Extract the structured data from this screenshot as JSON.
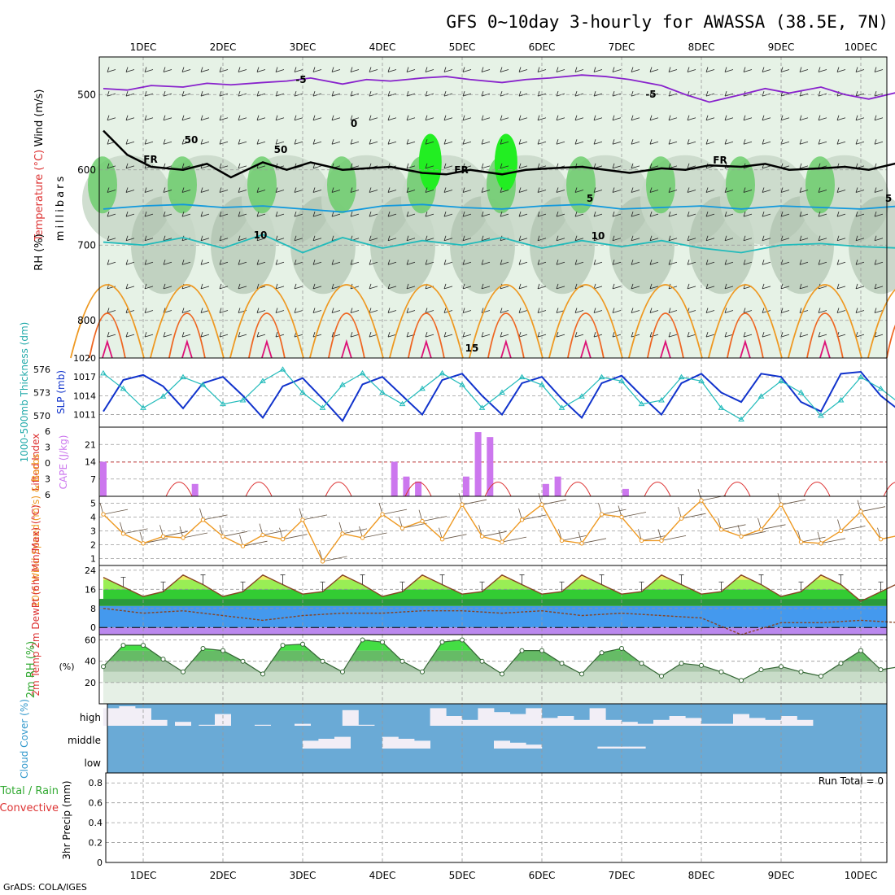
{
  "title": "GFS 0~10day 3-hourly for AWASSA (38.5E, 7N)",
  "footer": "GrADS: COLA/IGES",
  "days": [
    "1DEC",
    "2DEC",
    "3DEC",
    "4DEC",
    "5DEC",
    "6DEC",
    "7DEC",
    "8DEC",
    "9DEC",
    "10DEC"
  ],
  "colors": {
    "rh_light": "#e6f2e6",
    "rh_mid": "#c8d8c8",
    "rh_dark": "#a8bca8",
    "rh_green": "#66cc66",
    "rh_bright": "#22ee22",
    "temp_neg": "#8822cc",
    "temp_5": "#1199dd",
    "temp_10": "#22bbbb",
    "temp_15": "#ee9922",
    "temp_20": "#ee6622",
    "temp_25": "#dd1177",
    "fr": "#000000",
    "slp": "#1133cc",
    "thick": "#22bbbb",
    "cape": "#cc77ee",
    "li": "#dd3333",
    "wind10": "#ee9922",
    "cloud_bg": "#6aaad6",
    "cloud_fill": "#f2eef6",
    "precip": "#33aa33"
  },
  "chart_data": [
    {
      "panel": "upper-air",
      "type": "heatmap",
      "legend_labels": [
        "Wind (m/s)",
        "Temperature (°C)",
        "RH (%)"
      ],
      "ylabel": "millibars",
      "yticks": [
        500,
        600,
        700,
        800
      ],
      "ylim": [
        450,
        850
      ],
      "contour_labels": [
        "-5",
        "-5",
        "0",
        "5",
        "5",
        "10",
        "10",
        "15",
        "FR",
        "FR",
        "FR",
        "50",
        "50"
      ],
      "series": [
        {
          "name": "-5",
          "x": [
            0,
            0.3,
            0.6,
            1,
            1.3,
            1.6,
            2,
            2.3,
            2.6,
            3,
            3.3,
            3.6,
            4,
            4.3,
            4.6,
            5,
            5.3,
            5.6,
            6,
            6.3,
            6.6,
            7,
            7.3,
            7.6,
            8,
            8.3,
            8.6,
            9,
            9.3,
            9.6,
            10
          ],
          "values": [
            492,
            494,
            488,
            490,
            485,
            487,
            484,
            482,
            478,
            486,
            480,
            482,
            478,
            476,
            480,
            484,
            480,
            478,
            474,
            476,
            480,
            488,
            500,
            510,
            500,
            492,
            498,
            490,
            500,
            506,
            496
          ]
        },
        {
          "name": "FR",
          "x": [
            0,
            0.3,
            0.6,
            1,
            1.3,
            1.6,
            2,
            2.3,
            2.6,
            3,
            3.3,
            3.6,
            4,
            4.3,
            4.6,
            5,
            5.3,
            5.6,
            6,
            6.3,
            6.6,
            7,
            7.3,
            7.6,
            8,
            8.3,
            8.6,
            9,
            9.3,
            9.6,
            10
          ],
          "values": [
            548,
            580,
            596,
            600,
            592,
            610,
            590,
            600,
            590,
            600,
            598,
            596,
            604,
            606,
            600,
            606,
            600,
            598,
            596,
            600,
            604,
            598,
            600,
            594,
            596,
            592,
            600,
            598,
            596,
            600,
            590
          ]
        },
        {
          "name": "5",
          "x": [
            0,
            0.5,
            1,
            1.5,
            2,
            2.5,
            3,
            3.5,
            4,
            4.5,
            5,
            5.5,
            6,
            6.5,
            7,
            7.5,
            8,
            8.5,
            9,
            9.5,
            10
          ],
          "values": [
            652,
            648,
            646,
            650,
            648,
            652,
            656,
            648,
            646,
            650,
            652,
            648,
            646,
            652,
            650,
            648,
            652,
            648,
            650,
            652,
            648
          ]
        },
        {
          "name": "10",
          "x": [
            0,
            0.5,
            1,
            1.5,
            2,
            2.5,
            3,
            3.5,
            4,
            4.5,
            5,
            5.5,
            6,
            6.5,
            7,
            7.5,
            8,
            8.5,
            9,
            9.5,
            10
          ],
          "values": [
            696,
            700,
            690,
            704,
            686,
            710,
            690,
            704,
            694,
            700,
            690,
            704,
            694,
            702,
            694,
            704,
            710,
            700,
            698,
            702,
            704
          ]
        }
      ]
    },
    {
      "panel": "slp-thickness",
      "type": "line",
      "ylabel": "SLP (mb)",
      "ylabel2": "1000-500mb Thickness (dm)",
      "yticks": [
        1011,
        1014,
        1017,
        1020
      ],
      "yticks2": [
        570,
        573,
        576
      ],
      "ylim": [
        1009,
        1020
      ],
      "series": [
        {
          "name": "SLP",
          "x": [
            0,
            0.25,
            0.5,
            0.75,
            1,
            1.25,
            1.5,
            1.75,
            2,
            2.25,
            2.5,
            2.75,
            3,
            3.25,
            3.5,
            3.75,
            4,
            4.25,
            4.5,
            4.75,
            5,
            5.25,
            5.5,
            5.75,
            6,
            6.25,
            6.5,
            6.75,
            7,
            7.25,
            7.5,
            7.75,
            8,
            8.25,
            8.5,
            8.75,
            9,
            9.25,
            9.5,
            9.75,
            10
          ],
          "values": [
            1011.5,
            1016.5,
            1017.3,
            1015.5,
            1012,
            1016,
            1017,
            1014,
            1010.5,
            1015.5,
            1016.8,
            1013.5,
            1010,
            1015.8,
            1017,
            1014,
            1011,
            1016.5,
            1017.5,
            1014,
            1011,
            1016,
            1017,
            1013.5,
            1010.5,
            1016,
            1017.2,
            1014,
            1011,
            1016,
            1017.5,
            1014.5,
            1013,
            1017.5,
            1017,
            1013,
            1011.5,
            1017.5,
            1017.8,
            1014,
            1011.5
          ]
        },
        {
          "name": "Thickness",
          "x": [
            0,
            0.25,
            0.5,
            0.75,
            1,
            1.25,
            1.5,
            1.75,
            2,
            2.25,
            2.5,
            2.75,
            3,
            3.25,
            3.5,
            3.75,
            4,
            4.25,
            4.5,
            4.75,
            5,
            5.25,
            5.5,
            5.75,
            6,
            6.25,
            6.5,
            6.75,
            7,
            7.25,
            7.5,
            7.75,
            8,
            8.25,
            8.5,
            8.75,
            9,
            9.25,
            9.5,
            9.75,
            10
          ],
          "values": [
            575.5,
            573.5,
            571,
            572.5,
            575,
            574,
            571.5,
            572,
            574.5,
            576,
            573,
            571,
            574,
            575.5,
            573,
            571.5,
            573.5,
            575.5,
            574,
            571,
            573,
            575,
            574,
            571,
            572.5,
            575,
            574.5,
            571.5,
            572,
            575,
            574.5,
            571,
            569.5,
            572.5,
            574.5,
            573,
            570,
            572,
            575,
            573.5,
            571.5
          ]
        }
      ]
    },
    {
      "panel": "cape-li",
      "type": "bar",
      "ylabel": "CAPE (J/kg)",
      "ylabel2": "Lifted Index",
      "yticks": [
        7,
        14,
        21
      ],
      "yticks2": [
        6,
        3,
        0,
        -3,
        -6
      ],
      "ylim": [
        0,
        28
      ],
      "x": [
        0,
        1.15,
        3.65,
        3.8,
        3.95,
        4.55,
        4.7,
        4.85,
        5.55,
        5.7,
        6.55
      ],
      "values": [
        14,
        5,
        14,
        8,
        6,
        8,
        26,
        24,
        5,
        8,
        3
      ]
    },
    {
      "panel": "wind-10m",
      "type": "line",
      "ylabel": "10m Wind Speed (m/s) & Barbs",
      "yticks": [
        1,
        2,
        3,
        4,
        5
      ],
      "ylim": [
        0.5,
        5.5
      ],
      "series": [
        {
          "name": "Speed",
          "x": [
            0,
            0.25,
            0.5,
            0.75,
            1,
            1.25,
            1.5,
            1.75,
            2,
            2.25,
            2.5,
            2.75,
            3,
            3.25,
            3.5,
            3.75,
            4,
            4.25,
            4.5,
            4.75,
            5,
            5.25,
            5.5,
            5.75,
            6,
            6.25,
            6.5,
            6.75,
            7,
            7.25,
            7.5,
            7.75,
            8,
            8.25,
            8.5,
            8.75,
            9,
            9.25,
            9.5,
            9.75,
            10
          ],
          "values": [
            4.2,
            2.8,
            2.1,
            2.6,
            2.5,
            3.8,
            2.6,
            1.9,
            2.7,
            2.4,
            3.8,
            0.8,
            2.8,
            2.5,
            4.2,
            3.2,
            3.7,
            2.4,
            4.9,
            2.6,
            2.2,
            3.8,
            4.9,
            2.3,
            2.1,
            4.2,
            4.0,
            2.3,
            2.3,
            3.9,
            5.2,
            3.1,
            2.6,
            3.1,
            4.9,
            2.2,
            2.1,
            3.0,
            4.4,
            2.4,
            2.7
          ]
        }
      ]
    },
    {
      "panel": "temp-2m",
      "type": "area",
      "ylabel": "2m Temp 2m DewPt (6hr Min/Max) (°C)",
      "yticks": [
        0,
        8,
        16,
        24
      ],
      "ylim": [
        -3,
        26
      ],
      "series": [
        {
          "name": "Temp",
          "x": [
            0,
            0.25,
            0.5,
            0.75,
            1,
            1.25,
            1.5,
            1.75,
            2,
            2.25,
            2.5,
            2.75,
            3,
            3.25,
            3.5,
            3.75,
            4,
            4.25,
            4.5,
            4.75,
            5,
            5.25,
            5.5,
            5.75,
            6,
            6.25,
            6.5,
            6.75,
            7,
            7.25,
            7.5,
            7.75,
            8,
            8.25,
            8.5,
            8.75,
            9,
            9.25,
            9.5,
            9.75,
            10
          ],
          "values": [
            21,
            17,
            13,
            15,
            22,
            18,
            13,
            15,
            22,
            18,
            14,
            15,
            22,
            18,
            13,
            15,
            22,
            18,
            14,
            15,
            22,
            18,
            14,
            15,
            22,
            18,
            14,
            15,
            22,
            18,
            14,
            15,
            22,
            18,
            13,
            15,
            22,
            18,
            11,
            15,
            19
          ]
        },
        {
          "name": "DewPt",
          "x": [
            0,
            0.5,
            1,
            1.5,
            2,
            2.5,
            3,
            3.5,
            4,
            4.5,
            5,
            5.5,
            6,
            6.5,
            7,
            7.5,
            8,
            8.5,
            9,
            9.5,
            10
          ],
          "values": [
            8,
            6,
            7,
            5,
            3,
            5,
            6,
            6,
            7,
            7,
            6,
            7,
            5,
            6,
            5,
            4,
            -3,
            2,
            2,
            3,
            2
          ]
        }
      ]
    },
    {
      "panel": "rh-2m",
      "type": "area",
      "ylabel": "2m RH (%)",
      "yticks": [
        20,
        40,
        60
      ],
      "ylim": [
        0,
        65
      ],
      "series": [
        {
          "name": "RH",
          "x": [
            0,
            0.25,
            0.5,
            0.75,
            1,
            1.25,
            1.5,
            1.75,
            2,
            2.25,
            2.5,
            2.75,
            3,
            3.25,
            3.5,
            3.75,
            4,
            4.25,
            4.5,
            4.75,
            5,
            5.25,
            5.5,
            5.75,
            6,
            6.25,
            6.5,
            6.75,
            7,
            7.25,
            7.5,
            7.75,
            8,
            8.25,
            8.5,
            8.75,
            9,
            9.25,
            9.5,
            9.75,
            10
          ],
          "values": [
            35,
            55,
            55,
            42,
            30,
            52,
            50,
            40,
            28,
            55,
            56,
            40,
            30,
            60,
            58,
            40,
            30,
            58,
            60,
            40,
            28,
            50,
            50,
            38,
            28,
            48,
            52,
            38,
            26,
            38,
            36,
            30,
            22,
            32,
            35,
            30,
            26,
            38,
            50,
            32,
            35
          ]
        }
      ]
    },
    {
      "panel": "cloud-cover",
      "type": "bar",
      "ylabel": "Cloud Cover (%)",
      "categories": [
        "high",
        "middle",
        "low"
      ],
      "series": [
        {
          "name": "high",
          "x": [
            0.1,
            0.3,
            0.5,
            0.7,
            1.0,
            1.3,
            1.5,
            2.0,
            2.5,
            3.1,
            3.3,
            4.2,
            4.4,
            4.6,
            4.8,
            5.0,
            5.2,
            5.4,
            5.6,
            5.8,
            6.0,
            6.2,
            6.4,
            6.6,
            6.8,
            7.0,
            7.2,
            7.4,
            7.6,
            7.8,
            8.0,
            8.2,
            8.4,
            8.6,
            8.8
          ],
          "values": [
            90,
            100,
            90,
            30,
            20,
            5,
            60,
            5,
            10,
            80,
            5,
            90,
            50,
            30,
            90,
            70,
            60,
            90,
            40,
            50,
            30,
            90,
            30,
            20,
            10,
            30,
            50,
            40,
            10,
            10,
            60,
            40,
            30,
            50,
            30
          ]
        },
        {
          "name": "middle",
          "x": [
            2.6,
            2.8,
            3.0,
            3.6,
            3.8,
            4.0,
            5.0,
            5.2,
            5.4,
            6.3,
            6.5,
            6.7
          ],
          "values": [
            40,
            50,
            60,
            60,
            50,
            40,
            40,
            30,
            20,
            10,
            10,
            10
          ]
        }
      ]
    },
    {
      "panel": "precip",
      "type": "bar",
      "ylabel": "3hr Precip (mm)",
      "legend_labels": [
        "Total / Rain",
        "Convective"
      ],
      "annotation": "Run Total = 0",
      "yticks": [
        0,
        0.2,
        0.4,
        0.6,
        0.8
      ],
      "ylim": [
        0,
        0.9
      ],
      "x": [],
      "values": []
    }
  ]
}
